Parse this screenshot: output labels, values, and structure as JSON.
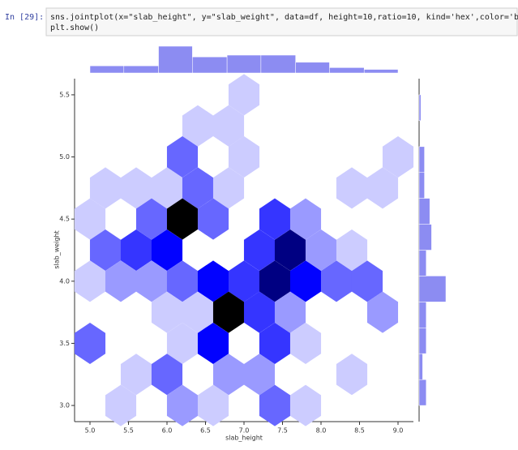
{
  "cell": {
    "prompt": "In [29]:",
    "code": [
      "sns.jointplot(x=\"slab_height\", y=\"slab_weight\", data=df, height=10,ratio=10, kind='hex',color='blue')",
      "plt.show()"
    ]
  },
  "chart_data": {
    "type": "hexbin",
    "xlabel": "slab_height",
    "ylabel": "slab_weight",
    "color": "blue",
    "xlim": [
      4.8,
      9.2
    ],
    "ylim": [
      2.87,
      5.63
    ],
    "xticks": [
      {
        "value": 5,
        "label": "5.0"
      },
      5.5,
      {
        "value": 6,
        "label": "6.0"
      },
      6.5,
      {
        "value": 7,
        "label": "7.0"
      },
      7.5,
      {
        "value": 8,
        "label": "8.0"
      },
      8.5,
      {
        "value": 9,
        "label": "9.0"
      }
    ],
    "yticks": [
      {
        "value": 3,
        "label": "3.0"
      },
      3.5,
      {
        "value": 4,
        "label": "4.0"
      },
      4.5,
      {
        "value": 5,
        "label": "5.0"
      },
      5.5
    ],
    "hexes": {
      "x": [
        7.0,
        6.4,
        6.8,
        6.2,
        7.0,
        9.0,
        5.2,
        5.6,
        6.0,
        6.4,
        6.8,
        8.4,
        8.8,
        5.0,
        5.8,
        6.2,
        6.6,
        7.4,
        7.8,
        5.2,
        5.6,
        6.0,
        7.2,
        7.6,
        8.0,
        8.4,
        5.0,
        5.4,
        5.8,
        6.2,
        6.6,
        7.0,
        7.4,
        7.8,
        8.2,
        8.6,
        6.0,
        6.4,
        6.8,
        7.2,
        7.6,
        8.8,
        5.0,
        6.2,
        6.6,
        7.4,
        7.8,
        5.6,
        6.0,
        6.8,
        7.2,
        8.4,
        5.4,
        6.2,
        6.6,
        7.4,
        7.8
      ],
      "y": [
        5.5,
        5.25,
        5.25,
        5.0,
        5.0,
        5.0,
        4.75,
        4.75,
        4.75,
        4.75,
        4.75,
        4.75,
        4.75,
        4.5,
        4.5,
        4.5,
        4.5,
        4.5,
        4.5,
        4.25,
        4.25,
        4.25,
        4.25,
        4.25,
        4.25,
        4.25,
        4.0,
        4.0,
        4.0,
        4.0,
        4.0,
        4.0,
        4.0,
        4.0,
        4.0,
        4.0,
        3.75,
        3.75,
        3.75,
        3.75,
        3.75,
        3.75,
        3.5,
        3.5,
        3.5,
        3.5,
        3.5,
        3.25,
        3.25,
        3.25,
        3.25,
        3.25,
        3.0,
        3.0,
        3.0,
        3.0,
        3.0
      ],
      "counts": [
        1,
        1,
        1,
        3,
        1,
        1,
        1,
        1,
        1,
        3,
        1,
        1,
        1,
        1,
        3,
        7,
        3,
        4,
        2,
        3,
        4,
        5,
        4,
        6,
        2,
        1,
        1,
        2,
        2,
        3,
        5,
        4,
        6,
        5,
        3,
        3,
        1,
        1,
        7,
        4,
        2,
        2,
        3,
        1,
        5,
        4,
        1,
        1,
        3,
        2,
        2,
        1,
        1,
        2,
        1,
        3,
        1
      ]
    },
    "marginal_x": {
      "color": "#8c8cf2",
      "ylim": [
        0,
        15
      ],
      "bins": [
        5.0,
        5.44,
        5.89,
        6.33,
        6.78,
        7.22,
        7.67,
        8.11,
        8.56,
        9.0
      ],
      "counts": [
        4,
        4,
        15,
        9,
        10,
        10,
        6,
        3,
        2
      ]
    },
    "marginal_y": {
      "color": "#8c8cf2",
      "xlim": [
        0,
        15
      ],
      "bins": [
        3.0,
        3.208,
        3.417,
        3.625,
        3.833,
        4.042,
        4.25,
        4.458,
        4.667,
        4.875,
        5.083,
        5.292,
        5.5
      ],
      "counts": [
        4,
        2,
        4,
        4,
        15,
        4,
        7,
        6,
        3,
        3,
        0,
        1
      ]
    }
  }
}
